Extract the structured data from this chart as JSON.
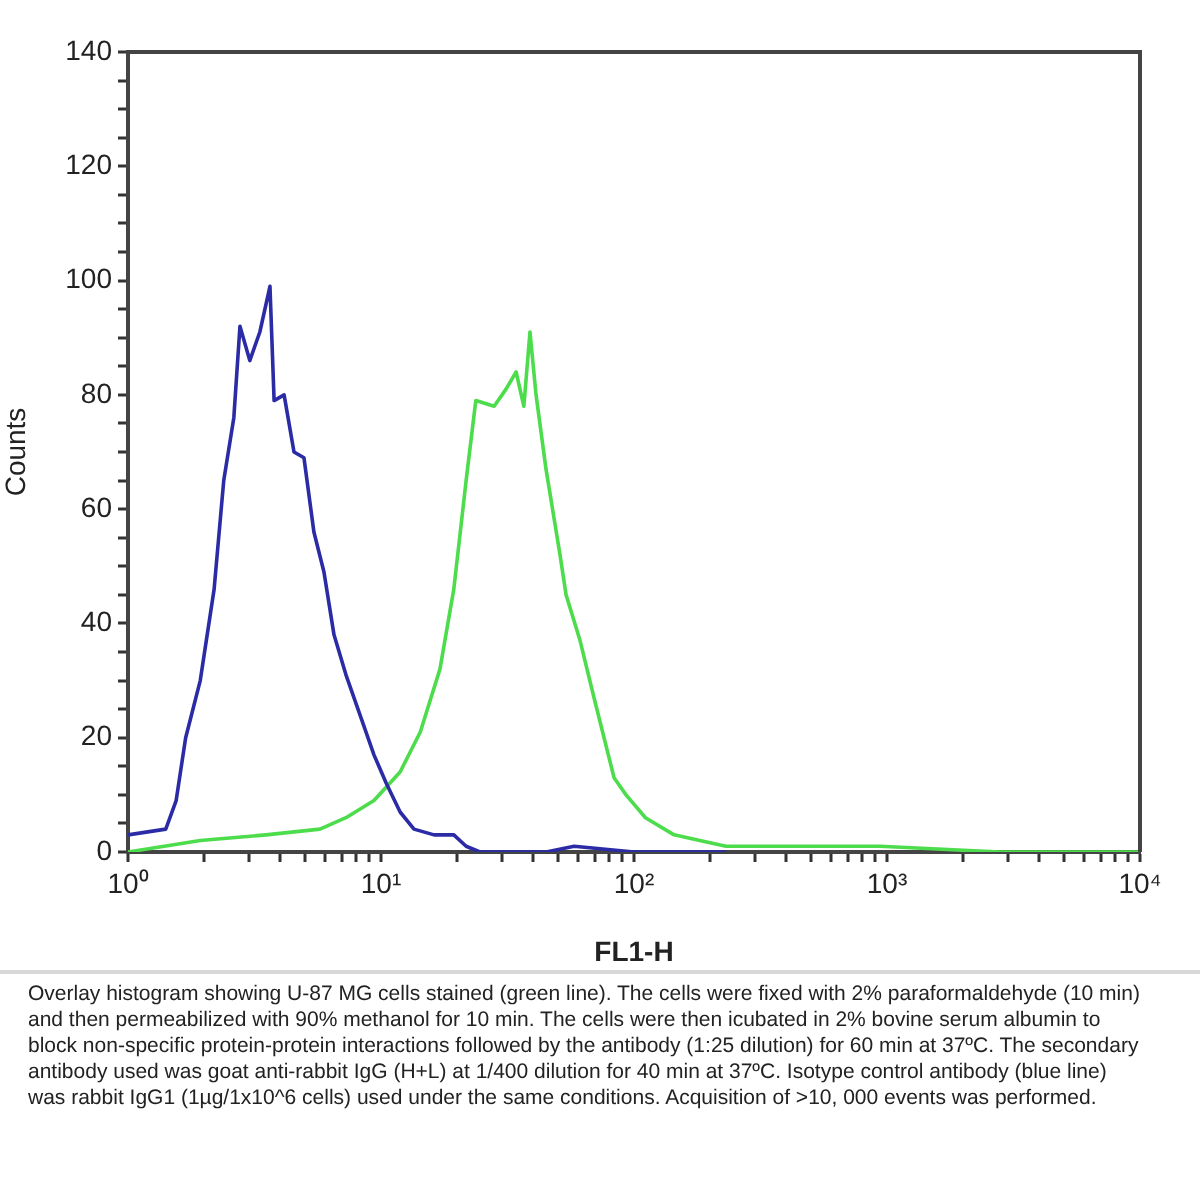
{
  "chart_data": {
    "type": "line",
    "xlabel": "FL1-H",
    "ylabel": "Counts",
    "log": "x",
    "marker": "none",
    "xlim": [
      1,
      10000
    ],
    "ylim": [
      0,
      140
    ],
    "xticks": [
      {
        "value": 1,
        "label": "10⁰"
      },
      {
        "value": 2,
        "label": null
      },
      {
        "value": 3,
        "label": null
      },
      {
        "value": 4,
        "label": null
      },
      {
        "value": 5,
        "label": null
      },
      {
        "value": 6,
        "label": null
      },
      {
        "value": 7,
        "label": null
      },
      {
        "value": 8,
        "label": null
      },
      {
        "value": 9,
        "label": null
      },
      {
        "value": 10,
        "label": "10¹"
      },
      {
        "value": 20,
        "label": null
      },
      {
        "value": 30,
        "label": null
      },
      {
        "value": 40,
        "label": null
      },
      {
        "value": 50,
        "label": null
      },
      {
        "value": 60,
        "label": null
      },
      {
        "value": 70,
        "label": null
      },
      {
        "value": 80,
        "label": null
      },
      {
        "value": 90,
        "label": null
      },
      {
        "value": 100,
        "label": "10²"
      },
      {
        "value": 200,
        "label": null
      },
      {
        "value": 300,
        "label": null
      },
      {
        "value": 400,
        "label": null
      },
      {
        "value": 500,
        "label": null
      },
      {
        "value": 600,
        "label": null
      },
      {
        "value": 700,
        "label": null
      },
      {
        "value": 800,
        "label": null
      },
      {
        "value": 900,
        "label": null
      },
      {
        "value": 1000,
        "label": "10³"
      },
      {
        "value": 2000,
        "label": null
      },
      {
        "value": 3000,
        "label": null
      },
      {
        "value": 4000,
        "label": null
      },
      {
        "value": 5000,
        "label": null
      },
      {
        "value": 6000,
        "label": null
      },
      {
        "value": 7000,
        "label": null
      },
      {
        "value": 8000,
        "label": null
      },
      {
        "value": 9000,
        "label": null
      },
      {
        "value": 10000,
        "label": "10⁴"
      }
    ],
    "yticks": [
      0,
      {
        "value": 5,
        "label": null
      },
      {
        "value": 10,
        "label": null
      },
      {
        "value": 15,
        "label": null
      },
      20,
      {
        "value": 25,
        "label": null
      },
      {
        "value": 30,
        "label": null
      },
      {
        "value": 35,
        "label": null
      },
      40,
      {
        "value": 45,
        "label": null
      },
      {
        "value": 50,
        "label": null
      },
      {
        "value": 55,
        "label": null
      },
      60,
      {
        "value": 65,
        "label": null
      },
      {
        "value": 70,
        "label": null
      },
      {
        "value": 75,
        "label": null
      },
      80,
      {
        "value": 85,
        "label": null
      },
      {
        "value": 90,
        "label": null
      },
      {
        "value": 95,
        "label": null
      },
      100,
      {
        "value": 105,
        "label": null
      },
      {
        "value": 110,
        "label": null
      },
      {
        "value": 115,
        "label": null
      },
      120,
      {
        "value": 125,
        "label": null
      },
      {
        "value": 130,
        "label": null
      },
      {
        "value": 135,
        "label": null
      },
      140
    ],
    "series": [
      {
        "color": "#2b2ba6",
        "x": [
          1,
          1.41,
          1.55,
          1.69,
          1.93,
          2.19,
          2.39,
          2.62,
          2.77,
          3.03,
          3.32,
          3.64,
          3.78,
          4.14,
          4.53,
          4.96,
          5.43,
          5.95,
          6.52,
          7.27,
          8.26,
          9.38,
          10.5,
          11.9,
          13.5,
          16.2,
          19.4,
          21.7,
          24.6,
          45,
          58,
          100,
          231
        ],
        "values": [
          3,
          4,
          9,
          20,
          30,
          46,
          65,
          76,
          92,
          86,
          91,
          99,
          79,
          80,
          70,
          69,
          56,
          49,
          38,
          31,
          24,
          17,
          12,
          7,
          4,
          3,
          3,
          1,
          0,
          0,
          1,
          0,
          0
        ]
      },
      {
        "color": "#4cdc4c",
        "x": [
          1,
          1.93,
          3.51,
          5.74,
          7.27,
          9.38,
          11.9,
          14.3,
          17.1,
          19.4,
          21.7,
          23.7,
          28,
          31.2,
          34.2,
          36.7,
          38.8,
          41,
          44.9,
          51,
          53.9,
          61.2,
          69.5,
          83.4,
          93,
          111,
          144,
          182,
          231,
          453,
          938,
          2800,
          10000
        ],
        "values": [
          0,
          2,
          3,
          4,
          6,
          9,
          14,
          21,
          32,
          46,
          65,
          79,
          78,
          81,
          84,
          78,
          91,
          80,
          67,
          52,
          45,
          37,
          27,
          13,
          10,
          6,
          3,
          2,
          1,
          1,
          1,
          0,
          0
        ]
      }
    ],
    "annotations": [
      "Overlay histogram showing U-87 MG cells stained (green line). The cells were fixed with 2% paraformaldehyde (10 min) and then permeabilized with 90% methanol for 10 min. The cells were then icubated in 2% bovine serum albumin to block non-specific protein-protein interactions followed by the antibody (1:25 dilution) for 60 min at 37ºC. The secondary antibody used was goat anti-rabbit IgG (H+L) at 1/400 dilution for 40 min at 37ºC. Isotype control antibody (blue line) was rabbit IgG1 (1µg/1x10^6 cells) used under the same conditions. Acquisition of >10, 000 events was performed."
    ]
  }
}
